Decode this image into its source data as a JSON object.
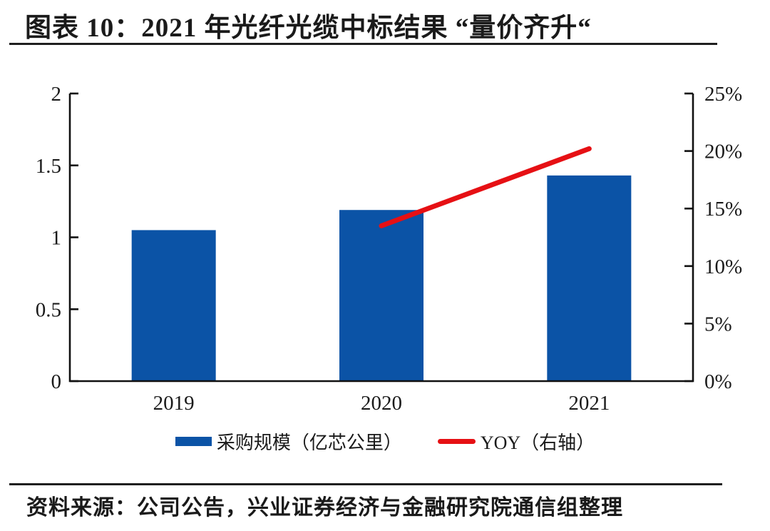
{
  "header": {
    "title": "图表 10：2021 年光纤光缆中标结果 “量价齐升“"
  },
  "chart_data": {
    "type": "combo",
    "title": "2021 年光纤光缆中标结果 “量价齐升“",
    "categories": [
      "2019",
      "2020",
      "2021"
    ],
    "series": [
      {
        "name": "采购规模（亿芯公里）",
        "type": "bar",
        "axis": "left",
        "color": "#0B53A6",
        "values": [
          1.05,
          1.19,
          1.43
        ]
      },
      {
        "name": "YOY（右轴）",
        "type": "line",
        "axis": "right",
        "color": "#E61014",
        "values": [
          null,
          13.5,
          20.2
        ]
      }
    ],
    "left_axis": {
      "min": 0,
      "max": 2,
      "ticks": [
        "2",
        "1.5",
        "1",
        "0.5",
        "0"
      ]
    },
    "right_axis": {
      "min": 0,
      "max": 25,
      "ticks": [
        "25%",
        "20%",
        "15%",
        "10%",
        "5%",
        "0%"
      ],
      "unit": "%"
    },
    "axis_color": "#111111",
    "grid": false,
    "legend_position": "bottom"
  },
  "footer": {
    "source": "资料来源：公司公告，兴业证券经济与金融研究院通信组整理"
  }
}
